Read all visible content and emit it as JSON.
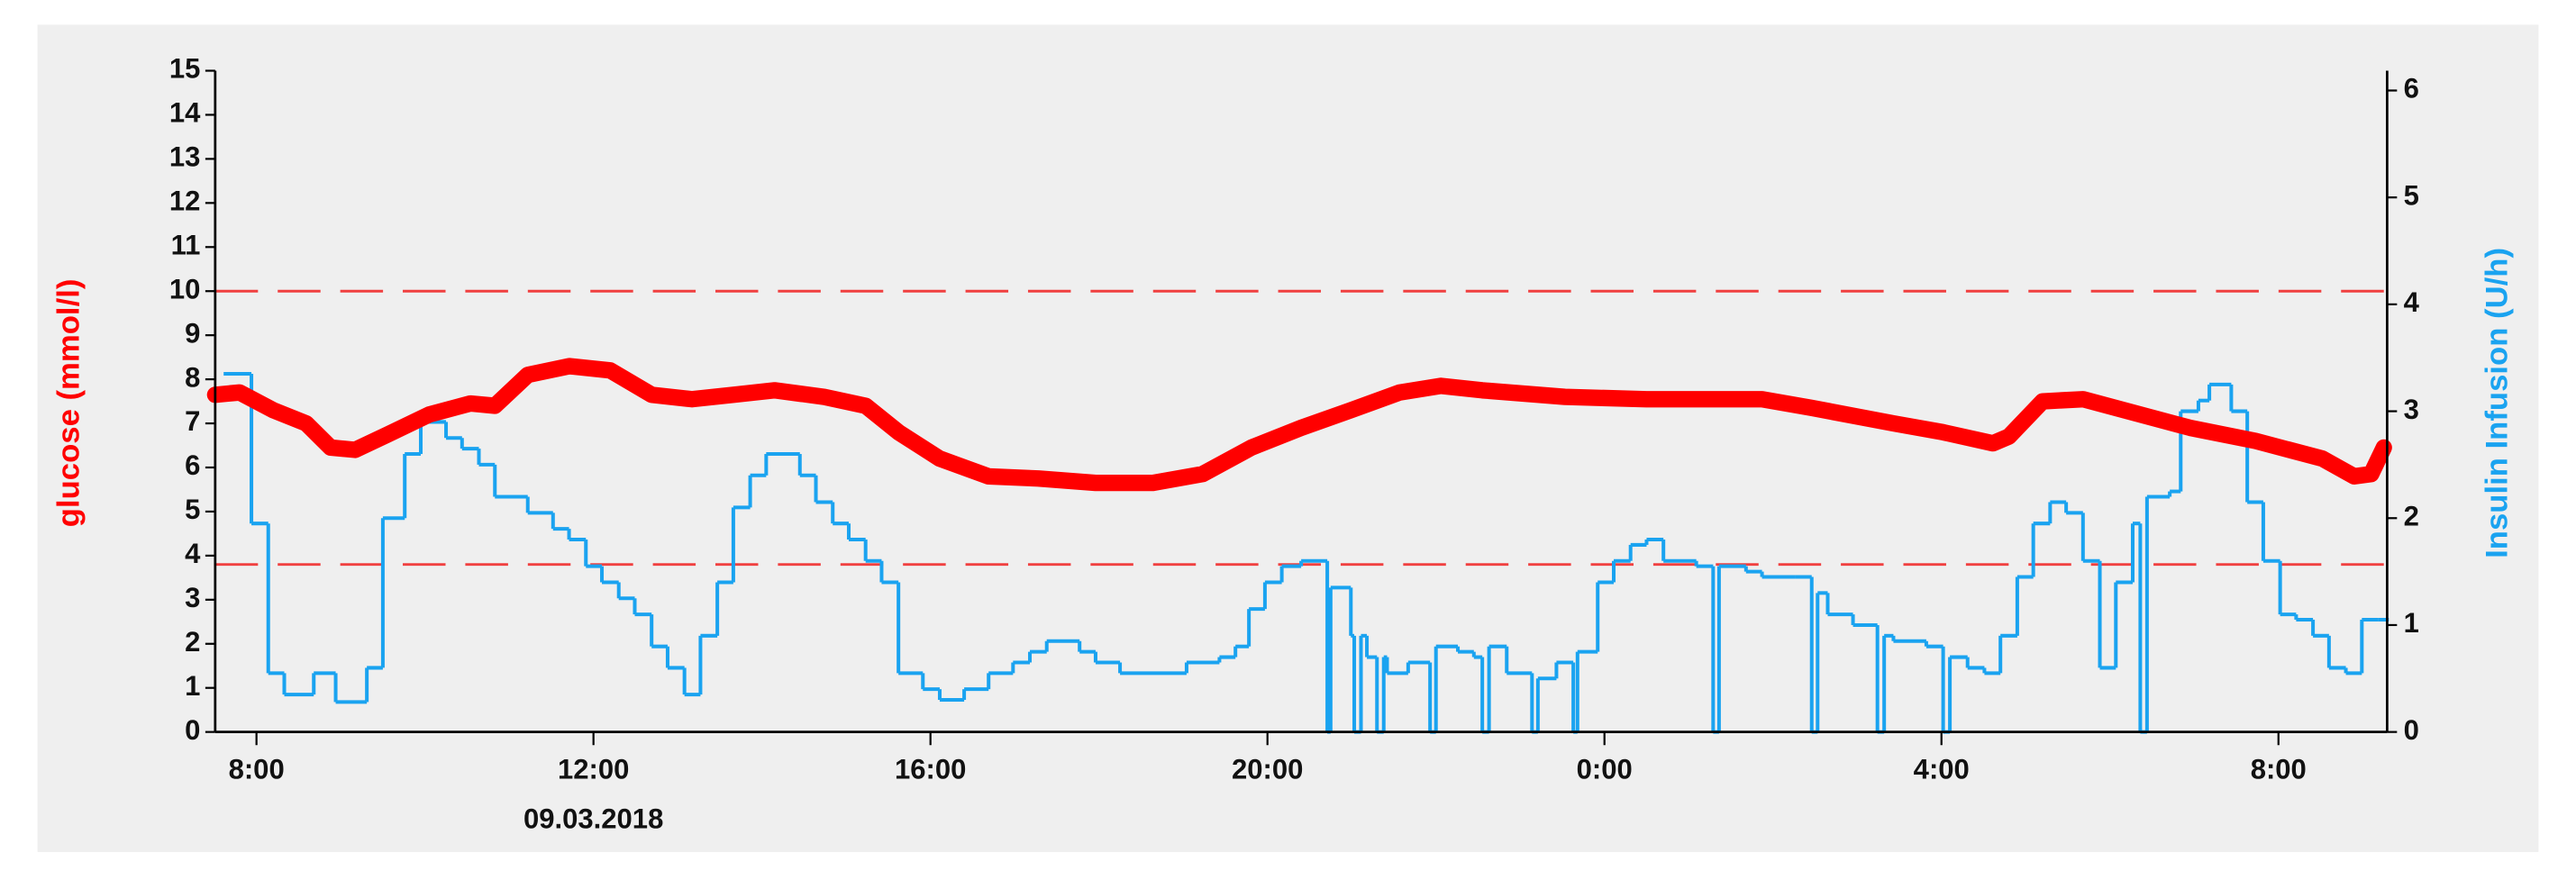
{
  "chart_data": {
    "type": "line",
    "y_label": "glucose (mmol/l)",
    "y2_label": "Insulin Infusion (U/h)",
    "date_label": "09.03.2018",
    "xlim": [
      7.51,
      33.29
    ],
    "xticks": [
      {
        "value": 8,
        "label": "8:00"
      },
      {
        "value": 12,
        "label": "12:00"
      },
      {
        "value": 16,
        "label": "16:00"
      },
      {
        "value": 20,
        "label": "20:00"
      },
      {
        "value": 24,
        "label": "0:00"
      },
      {
        "value": 28,
        "label": "4:00"
      },
      {
        "value": 32,
        "label": "8:00"
      }
    ],
    "ylim": [
      0,
      15
    ],
    "yticks": [
      0,
      1,
      2,
      3,
      4,
      5,
      6,
      7,
      8,
      9,
      10,
      11,
      12,
      13,
      14,
      15
    ],
    "y2lim": [
      0,
      6.185
    ],
    "y2ticks": [
      0,
      1,
      2,
      3,
      4,
      5,
      6
    ],
    "hlines": {
      "values": [
        10,
        3.8
      ],
      "color": "#f04040"
    },
    "series": [
      {
        "name": "glucose",
        "color": "#ff0000",
        "step": false,
        "x": [
          7.51,
          7.8,
          8.2,
          8.59,
          8.88,
          9.17,
          9.56,
          10.05,
          10.54,
          10.83,
          11.22,
          11.71,
          12.2,
          12.69,
          13.17,
          13.66,
          14.15,
          14.74,
          15.23,
          15.62,
          16.11,
          16.69,
          17.28,
          17.96,
          18.64,
          19.23,
          19.81,
          20.4,
          20.99,
          21.57,
          22.06,
          22.55,
          23.53,
          24.5,
          25.87,
          26.46,
          27.43,
          28.02,
          28.61,
          28.8,
          29.2,
          29.68,
          30.17,
          30.95,
          31.73,
          32.52,
          32.9,
          33.1,
          33.25
        ],
        "values": [
          7.65,
          7.7,
          7.3,
          7.0,
          6.45,
          6.4,
          6.75,
          7.2,
          7.45,
          7.4,
          8.1,
          8.3,
          8.2,
          7.65,
          7.55,
          7.65,
          7.75,
          7.6,
          7.4,
          6.8,
          6.2,
          5.8,
          5.75,
          5.65,
          5.65,
          5.85,
          6.45,
          6.9,
          7.3,
          7.7,
          7.85,
          7.75,
          7.6,
          7.55,
          7.55,
          7.35,
          7.0,
          6.8,
          6.55,
          6.7,
          7.5,
          7.55,
          7.3,
          6.9,
          6.6,
          6.2,
          5.8,
          5.85,
          6.45
        ]
      },
      {
        "name": "insulin",
        "color": "#1aa3f0",
        "axis": "y2",
        "step": true,
        "x": [
          7.61,
          7.94,
          8.14,
          8.33,
          8.68,
          8.94,
          9.31,
          9.5,
          9.76,
          9.95,
          10.25,
          10.44,
          10.64,
          10.83,
          11.22,
          11.52,
          11.71,
          11.91,
          12.1,
          12.3,
          12.49,
          12.69,
          12.88,
          13.08,
          13.27,
          13.47,
          13.66,
          13.86,
          14.05,
          14.45,
          14.64,
          14.84,
          15.03,
          15.23,
          15.42,
          15.62,
          15.91,
          16.11,
          16.4,
          16.69,
          16.98,
          17.18,
          17.38,
          17.77,
          17.96,
          18.25,
          19.04,
          19.43,
          19.62,
          19.78,
          19.97,
          20.17,
          20.4,
          20.71,
          20.75,
          20.99,
          21.03,
          21.11,
          21.18,
          21.3,
          21.38,
          21.42,
          21.67,
          21.93,
          22.0,
          22.26,
          22.45,
          22.55,
          22.63,
          22.84,
          23.14,
          23.21,
          23.43,
          23.63,
          23.68,
          23.92,
          24.11,
          24.31,
          24.5,
          24.7,
          25.09,
          25.29,
          25.36,
          25.68,
          25.87,
          26.26,
          26.46,
          26.53,
          26.65,
          26.95,
          27.24,
          27.32,
          27.43,
          27.82,
          28.02,
          28.1,
          28.31,
          28.51,
          28.7,
          28.9,
          29.09,
          29.29,
          29.48,
          29.68,
          29.88,
          30.07,
          30.27,
          30.36,
          30.44,
          30.71,
          30.84,
          31.05,
          31.18,
          31.44,
          31.63,
          31.82,
          32.02,
          32.21,
          32.41,
          32.6,
          32.8,
          32.99,
          33.18,
          33.29
        ],
        "values": [
          3.35,
          1.95,
          0.55,
          0.35,
          0.55,
          0.28,
          0.6,
          2.0,
          2.6,
          2.9,
          2.75,
          2.65,
          2.5,
          2.2,
          2.05,
          1.9,
          1.8,
          1.55,
          1.4,
          1.25,
          1.1,
          0.8,
          0.6,
          0.35,
          0.9,
          1.4,
          2.1,
          2.4,
          2.6,
          2.4,
          2.15,
          1.95,
          1.8,
          1.6,
          1.4,
          0.55,
          0.4,
          0.3,
          0.4,
          0.55,
          0.65,
          0.75,
          0.85,
          0.75,
          0.65,
          0.55,
          0.65,
          0.7,
          0.8,
          1.15,
          1.4,
          1.55,
          1.6,
          0,
          1.35,
          0.9,
          0,
          0.9,
          0.7,
          0,
          0.7,
          0.55,
          0.65,
          0,
          0.8,
          0.75,
          0.7,
          0,
          0.8,
          0.55,
          0,
          0.5,
          0.65,
          0,
          0.75,
          1.4,
          1.6,
          1.75,
          1.8,
          1.6,
          1.55,
          0,
          1.55,
          1.5,
          1.45,
          1.45,
          0,
          1.3,
          1.1,
          1.0,
          0,
          0.9,
          0.85,
          0.8,
          0,
          0.7,
          0.6,
          0.55,
          0.9,
          1.45,
          1.95,
          2.15,
          2.05,
          1.6,
          0.6,
          1.4,
          1.95,
          0,
          2.2,
          2.25,
          3.0,
          3.1,
          3.25,
          3.0,
          2.15,
          1.6,
          1.1,
          1.05,
          0.9,
          0.6,
          0.55,
          1.05,
          1.05,
          1.05
        ]
      }
    ]
  }
}
